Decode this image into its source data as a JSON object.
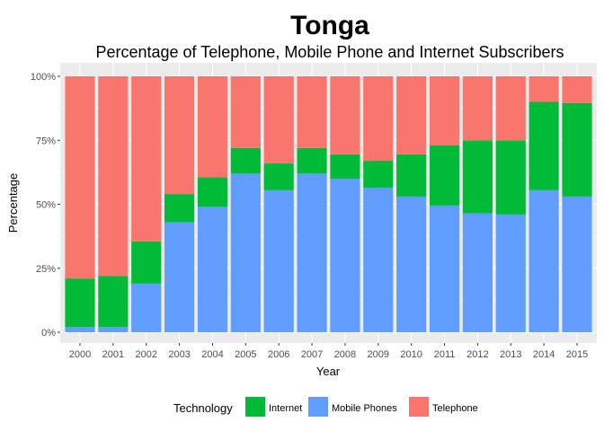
{
  "chart_data": {
    "type": "bar",
    "stacked": true,
    "title": "Tonga",
    "subtitle": "Percentage of Telephone, Mobile Phone and Internet Subscribers",
    "xlabel": "Year",
    "ylabel": "Percentage",
    "ylim": [
      0,
      1
    ],
    "y_ticks": [
      "0%",
      "25%",
      "50%",
      "75%",
      "100%"
    ],
    "y_tick_values": [
      0,
      0.25,
      0.5,
      0.75,
      1.0
    ],
    "categories": [
      "2000",
      "2001",
      "2002",
      "2003",
      "2004",
      "2005",
      "2006",
      "2007",
      "2008",
      "2009",
      "2010",
      "2011",
      "2012",
      "2013",
      "2014",
      "2015"
    ],
    "series": [
      {
        "name": "Mobile Phones",
        "color": "#619CFF",
        "values": [
          0.02,
          0.02,
          0.19,
          0.43,
          0.49,
          0.62,
          0.555,
          0.62,
          0.6,
          0.565,
          0.53,
          0.495,
          0.465,
          0.46,
          0.555,
          0.53
        ]
      },
      {
        "name": "Internet",
        "color": "#00BA38",
        "values": [
          0.19,
          0.2,
          0.165,
          0.11,
          0.115,
          0.1,
          0.105,
          0.1,
          0.095,
          0.105,
          0.165,
          0.235,
          0.285,
          0.29,
          0.345,
          0.365
        ]
      },
      {
        "name": "Telephone",
        "color": "#F8766D",
        "values": [
          0.79,
          0.78,
          0.645,
          0.46,
          0.395,
          0.28,
          0.34,
          0.28,
          0.305,
          0.33,
          0.305,
          0.27,
          0.25,
          0.25,
          0.1,
          0.105
        ]
      }
    ],
    "legend": {
      "title": "Technology",
      "position": "bottom",
      "items": [
        {
          "label": "Internet",
          "color": "#00BA38"
        },
        {
          "label": "Mobile Phones",
          "color": "#619CFF"
        },
        {
          "label": "Telephone",
          "color": "#F8766D"
        }
      ]
    },
    "grid": true,
    "panel_background": "#EBEBEB"
  }
}
